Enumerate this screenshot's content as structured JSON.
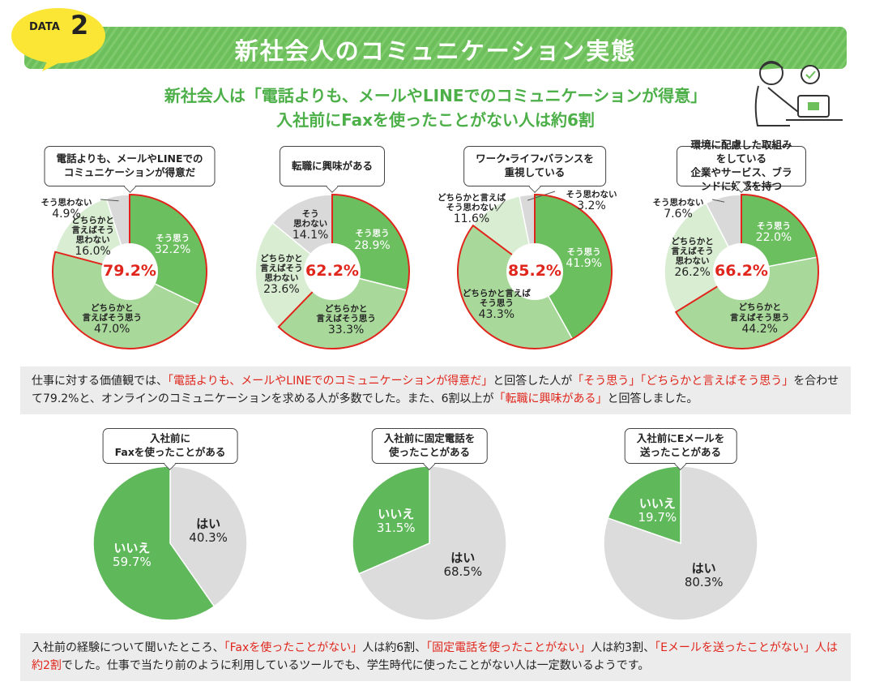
{
  "header": {
    "badge": "DATA",
    "badge_number": "2",
    "title": "新社会人のコミュニケーション実態"
  },
  "subtitle": [
    "新社会人は「電話よりも、メールやLINEでのコミュニケーションが得意」",
    "入社前にFaxを使ったことがない人は約6割"
  ],
  "chart_data": [
    {
      "type": "pie",
      "title": "電話よりも、メールやLINEでの\nコミュニケーションが得意だ",
      "categories": [
        "そう思う",
        "どちらかと\n言えばそう思う",
        "どちらかと\n言えばそう\n思わない",
        "そう思わない"
      ],
      "values": [
        32.2,
        47.0,
        16.0,
        4.9
      ],
      "value_labels": [
        "32.2%",
        "47.0%",
        "16.0%",
        "4.9%"
      ],
      "colors": [
        "#6cbf5f",
        "#a9d89b",
        "#d8edd2",
        "#d9d9d9"
      ],
      "center": {
        "value": 79.2,
        "label": "79.2%"
      }
    },
    {
      "type": "pie",
      "title": "転職に興味がある",
      "categories": [
        "そう思う",
        "どちらかと\n言えばそう思う",
        "どちらかと\n言えばそう\n思わない",
        "そう\n思わない"
      ],
      "values": [
        28.9,
        33.3,
        23.6,
        14.1
      ],
      "value_labels": [
        "28.9%",
        "33.3%",
        "23.6%",
        "14.1%"
      ],
      "colors": [
        "#6cbf5f",
        "#a9d89b",
        "#d8edd2",
        "#d9d9d9"
      ],
      "center": {
        "value": 62.2,
        "label": "62.2%"
      }
    },
    {
      "type": "pie",
      "title": "ワーク・ライフ・バランスを\n重視している",
      "categories": [
        "そう思う",
        "どちらかと言えば\nそう思う",
        "どちらかと言えば\nそう思わない",
        "そう思わない"
      ],
      "values": [
        41.9,
        43.3,
        11.6,
        3.2
      ],
      "value_labels": [
        "41.9%",
        "43.3%",
        "11.6%",
        "3.2%"
      ],
      "colors": [
        "#6cbf5f",
        "#a9d89b",
        "#d8edd2",
        "#d9d9d9"
      ],
      "center": {
        "value": 85.2,
        "label": "85.2%"
      }
    },
    {
      "type": "pie",
      "title": "環境に配慮した取組みをしている\n企業やサービス、ブランドに好感を持つ",
      "categories": [
        "そう思う",
        "どちらかと\n言えばそう思う",
        "どちらかと\n言えばそう\n思わない",
        "そう思わない"
      ],
      "values": [
        22.0,
        44.2,
        26.2,
        7.6
      ],
      "value_labels": [
        "22.0%",
        "44.2%",
        "26.2%",
        "7.6%"
      ],
      "colors": [
        "#6cbf5f",
        "#a9d89b",
        "#d8edd2",
        "#d9d9d9"
      ],
      "center": {
        "value": 66.2,
        "label": "66.2%"
      }
    },
    {
      "type": "pie",
      "title": "入社前に\nFaxを使ったことがある",
      "categories": [
        "はい",
        "いいえ"
      ],
      "values": [
        40.3,
        59.7
      ],
      "value_labels": [
        "40.3%",
        "59.7%"
      ],
      "colors": [
        "#dcdcdc",
        "#5fb85a"
      ]
    },
    {
      "type": "pie",
      "title": "入社前に固定電話を\n使ったことがある",
      "categories": [
        "はい",
        "いいえ"
      ],
      "values": [
        68.5,
        31.5
      ],
      "value_labels": [
        "68.5%",
        "31.5%"
      ],
      "colors": [
        "#dcdcdc",
        "#5fb85a"
      ]
    },
    {
      "type": "pie",
      "title": "入社前にEメールを\n送ったことがある",
      "categories": [
        "はい",
        "いいえ"
      ],
      "values": [
        80.3,
        19.7
      ],
      "value_labels": [
        "80.3%",
        "19.7%"
      ],
      "colors": [
        "#dcdcdc",
        "#5fb85a"
      ]
    }
  ],
  "notes": [
    [
      {
        "text": "仕事に対する価値観では、",
        "highlight": false
      },
      {
        "text": "「電話よりも、メールやLINEでのコミュニケーションが得意だ」",
        "highlight": true
      },
      {
        "text": "と回答した人が",
        "highlight": false
      },
      {
        "text": "「そう思う」「どちらかと言えばそう思う」",
        "highlight": true
      },
      {
        "text": "を合わせて79.2%と、オンラインのコミュニケーションを求める人が多数でした。また、6割以上が",
        "highlight": false
      },
      {
        "text": "「転職に興味がある」",
        "highlight": true
      },
      {
        "text": "と回答しました。",
        "highlight": false
      }
    ],
    [
      {
        "text": "入社前の経験について聞いたところ、",
        "highlight": false
      },
      {
        "text": "「Faxを使ったことがない」",
        "highlight": true
      },
      {
        "text": "人は約6割、",
        "highlight": false
      },
      {
        "text": "「固定電話を使ったことがない」",
        "highlight": true
      },
      {
        "text": "人は約3割、",
        "highlight": false
      },
      {
        "text": "「Eメールを送ったことがない」人は約2割",
        "highlight": true
      },
      {
        "text": "でした。仕事で当たり前のように利用しているツールでも、学生時代に使ったことがない人は一定数いるようです。",
        "highlight": false
      }
    ]
  ]
}
